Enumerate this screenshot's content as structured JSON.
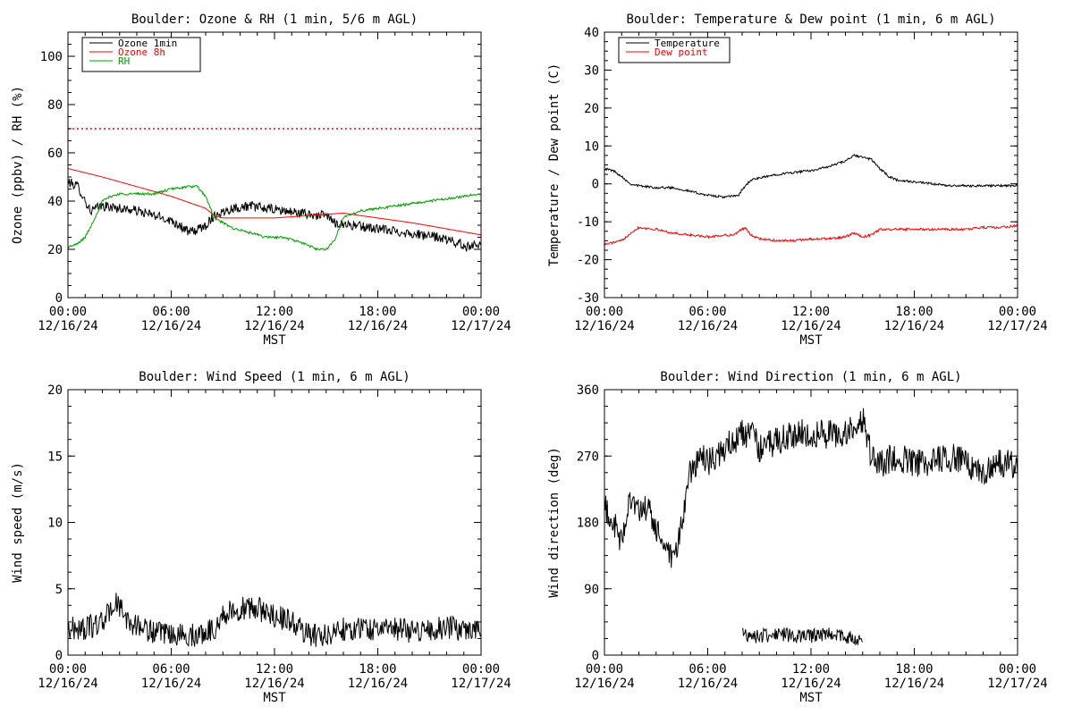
{
  "chart_data": [
    {
      "type": "line",
      "title": "Boulder: Ozone & RH (1 min, 5/6 m AGL)",
      "ylabel": "Ozone (ppbv) / RH (%)",
      "xlabel": "MST",
      "ylim": [
        0,
        110
      ],
      "yticks": [
        0,
        20,
        40,
        60,
        80,
        100
      ],
      "xticks": [
        {
          "time": "00:00",
          "date": "12/16/24"
        },
        {
          "time": "06:00",
          "date": "12/16/24"
        },
        {
          "time": "12:00",
          "date": "12/16/24"
        },
        {
          "time": "18:00",
          "date": "12/16/24"
        },
        {
          "time": "00:00",
          "date": "12/17/24"
        }
      ],
      "xlim_hours": [
        0,
        24
      ],
      "legend": "top-left",
      "reference_lines": [
        {
          "y": 70,
          "color": "#ff0000",
          "style": "dotted"
        }
      ],
      "series": [
        {
          "name": "Ozone 1min",
          "color": "#000000",
          "noise": 2.0,
          "points": [
            [
              0,
              48
            ],
            [
              0.6,
              46
            ],
            [
              1,
              40
            ],
            [
              1.3,
              36
            ],
            [
              2,
              38
            ],
            [
              3,
              37
            ],
            [
              4,
              36
            ],
            [
              5,
              34
            ],
            [
              5.5,
              33
            ],
            [
              6,
              32
            ],
            [
              6.5,
              30
            ],
            [
              7,
              27
            ],
            [
              7.5,
              28
            ],
            [
              8,
              30
            ],
            [
              8.5,
              34
            ],
            [
              9.5,
              37
            ],
            [
              10.5,
              38
            ],
            [
              11.5,
              37
            ],
            [
              12.5,
              36
            ],
            [
              13.5,
              35
            ],
            [
              14.5,
              34
            ],
            [
              15,
              34
            ],
            [
              15.5,
              31
            ],
            [
              16.5,
              30
            ],
            [
              17.5,
              29
            ],
            [
              18.5,
              28
            ],
            [
              19.5,
              27
            ],
            [
              20.5,
              26
            ],
            [
              21.5,
              25
            ],
            [
              22.5,
              23
            ],
            [
              23.2,
              21
            ],
            [
              24,
              23
            ]
          ]
        },
        {
          "name": "Ozone 8h",
          "color": "#ff0000",
          "noise": 0,
          "points": [
            [
              0,
              53.5
            ],
            [
              2,
              50
            ],
            [
              4,
              46
            ],
            [
              6,
              42
            ],
            [
              8,
              37
            ],
            [
              8.5,
              34
            ],
            [
              9,
              33
            ],
            [
              12,
              33
            ],
            [
              14,
              34
            ],
            [
              16,
              35
            ],
            [
              18,
              33
            ],
            [
              20,
              31
            ],
            [
              22,
              28.5
            ],
            [
              24,
              26
            ]
          ]
        },
        {
          "name": "RH",
          "color": "#00a000",
          "noise": 0.5,
          "points": [
            [
              0,
              21
            ],
            [
              0.5,
              22
            ],
            [
              1,
              25
            ],
            [
              1.5,
              32
            ],
            [
              2,
              40
            ],
            [
              2.5,
              42
            ],
            [
              3,
              43
            ],
            [
              4,
              43
            ],
            [
              5,
              43
            ],
            [
              6,
              45
            ],
            [
              7,
              46
            ],
            [
              7.5,
              46
            ],
            [
              8,
              42
            ],
            [
              8.5,
              33
            ],
            [
              9.5,
              29
            ],
            [
              10.5,
              27
            ],
            [
              11.5,
              25
            ],
            [
              12.5,
              25
            ],
            [
              13.5,
              23
            ],
            [
              14.5,
              20
            ],
            [
              15,
              20
            ],
            [
              15.5,
              24
            ],
            [
              16,
              33
            ],
            [
              17,
              36
            ],
            [
              18,
              37
            ],
            [
              19,
              38
            ],
            [
              20,
              39
            ],
            [
              21,
              40
            ],
            [
              22,
              41
            ],
            [
              23,
              42
            ],
            [
              24,
              43
            ]
          ]
        }
      ]
    },
    {
      "type": "line",
      "title": "Boulder: Temperature & Dew point (1 min, 6 m AGL)",
      "ylabel": "Temperature / Dew point (C)",
      "xlabel": "MST",
      "ylim": [
        -30,
        40
      ],
      "yticks": [
        -30,
        -20,
        -10,
        0,
        10,
        20,
        30,
        40
      ],
      "xticks": [
        {
          "time": "00:00",
          "date": "12/16/24"
        },
        {
          "time": "06:00",
          "date": "12/16/24"
        },
        {
          "time": "12:00",
          "date": "12/16/24"
        },
        {
          "time": "18:00",
          "date": "12/16/24"
        },
        {
          "time": "00:00",
          "date": "12/17/24"
        }
      ],
      "xlim_hours": [
        0,
        24
      ],
      "legend": "top-left",
      "series": [
        {
          "name": "Temperature",
          "color": "#000000",
          "noise": 0.3,
          "points": [
            [
              0,
              4
            ],
            [
              0.5,
              3.5
            ],
            [
              1,
              2
            ],
            [
              1.5,
              0
            ],
            [
              2,
              -0.5
            ],
            [
              3,
              -1
            ],
            [
              4,
              -1
            ],
            [
              5,
              -2
            ],
            [
              6,
              -3
            ],
            [
              7,
              -3.5
            ],
            [
              7.8,
              -3
            ],
            [
              8,
              -1.5
            ],
            [
              8.5,
              1
            ],
            [
              9,
              1.5
            ],
            [
              10,
              2.5
            ],
            [
              11,
              3
            ],
            [
              12,
              3.5
            ],
            [
              13,
              4.5
            ],
            [
              14,
              6
            ],
            [
              14.5,
              7.5
            ],
            [
              15,
              7
            ],
            [
              15.5,
              6.5
            ],
            [
              16,
              4
            ],
            [
              16.5,
              2
            ],
            [
              17,
              1
            ],
            [
              18,
              0.5
            ],
            [
              19,
              0
            ],
            [
              20,
              -0.5
            ],
            [
              21,
              -0.5
            ],
            [
              22,
              -0.5
            ],
            [
              23,
              -0.5
            ],
            [
              24,
              -0.5
            ]
          ]
        },
        {
          "name": "Dew point",
          "color": "#ff0000",
          "noise": 0.3,
          "points": [
            [
              0,
              -16
            ],
            [
              0.5,
              -15.5
            ],
            [
              1,
              -15
            ],
            [
              1.5,
              -13
            ],
            [
              2,
              -11.5
            ],
            [
              3,
              -12
            ],
            [
              4,
              -13
            ],
            [
              5,
              -13.5
            ],
            [
              6,
              -14
            ],
            [
              7,
              -13.5
            ],
            [
              7.5,
              -13.5
            ],
            [
              8,
              -12
            ],
            [
              8.2,
              -11.5
            ],
            [
              8.5,
              -13.5
            ],
            [
              9,
              -14.5
            ],
            [
              10,
              -15
            ],
            [
              11,
              -15
            ],
            [
              12,
              -14.5
            ],
            [
              13,
              -14.5
            ],
            [
              14,
              -14
            ],
            [
              14.5,
              -13
            ],
            [
              15,
              -14
            ],
            [
              15.5,
              -13.5
            ],
            [
              16,
              -12
            ],
            [
              17,
              -12
            ],
            [
              18,
              -12
            ],
            [
              19,
              -12
            ],
            [
              20,
              -12
            ],
            [
              21,
              -12
            ],
            [
              22,
              -11.5
            ],
            [
              23,
              -11.5
            ],
            [
              24,
              -11
            ]
          ]
        }
      ]
    },
    {
      "type": "line",
      "title": "Boulder: Wind Speed (1 min, 6 m AGL)",
      "ylabel": "Wind speed (m/s)",
      "xlabel": "MST",
      "ylim": [
        0,
        20
      ],
      "yticks": [
        0,
        5,
        10,
        15,
        20
      ],
      "xticks": [
        {
          "time": "00:00",
          "date": "12/16/24"
        },
        {
          "time": "06:00",
          "date": "12/16/24"
        },
        {
          "time": "12:00",
          "date": "12/16/24"
        },
        {
          "time": "18:00",
          "date": "12/16/24"
        },
        {
          "time": "00:00",
          "date": "12/17/24"
        }
      ],
      "xlim_hours": [
        0,
        24
      ],
      "series": [
        {
          "color": "#000000",
          "noise": 0.9,
          "points": [
            [
              0,
              2
            ],
            [
              1,
              2
            ],
            [
              2,
              2.5
            ],
            [
              2.8,
              4
            ],
            [
              3.5,
              2.5
            ],
            [
              4.5,
              2
            ],
            [
              5.5,
              1.5
            ],
            [
              6.5,
              1.5
            ],
            [
              7.5,
              1.5
            ],
            [
              8.5,
              2
            ],
            [
              9,
              3
            ],
            [
              10,
              3.5
            ],
            [
              11,
              3.5
            ],
            [
              12,
              3
            ],
            [
              13,
              2.5
            ],
            [
              14,
              1.5
            ],
            [
              15,
              1.5
            ],
            [
              16,
              2
            ],
            [
              17,
              2
            ],
            [
              18,
              2
            ],
            [
              19,
              2
            ],
            [
              20,
              1.8
            ],
            [
              21,
              2
            ],
            [
              22,
              2
            ],
            [
              23,
              2
            ],
            [
              24,
              2
            ]
          ]
        }
      ]
    },
    {
      "type": "line",
      "title": "Boulder: Wind Direction (1 min, 6 m AGL)",
      "ylabel": "Wind direction (deg)",
      "xlabel": "MST",
      "ylim": [
        0,
        360
      ],
      "yticks": [
        0,
        90,
        180,
        270,
        360
      ],
      "xticks": [
        {
          "time": "00:00",
          "date": "12/16/24"
        },
        {
          "time": "06:00",
          "date": "12/16/24"
        },
        {
          "time": "12:00",
          "date": "12/16/24"
        },
        {
          "time": "18:00",
          "date": "12/16/24"
        },
        {
          "time": "00:00",
          "date": "12/17/24"
        }
      ],
      "xlim_hours": [
        0,
        24
      ],
      "series": [
        {
          "color": "#000000",
          "noise": 20,
          "points": [
            [
              0,
              200
            ],
            [
              0.5,
              180
            ],
            [
              1,
              150
            ],
            [
              1.5,
              220
            ],
            [
              2,
              190
            ],
            [
              2.5,
              200
            ],
            [
              3,
              170
            ],
            [
              3.5,
              150
            ],
            [
              4,
              120
            ],
            [
              4.5,
              180
            ],
            [
              5,
              250
            ],
            [
              5.5,
              270
            ],
            [
              6,
              260
            ],
            [
              6.5,
              270
            ],
            [
              7,
              280
            ],
            [
              7.5,
              290
            ],
            [
              8,
              300
            ],
            [
              8.5,
              300
            ],
            [
              9,
              280
            ],
            [
              10,
              290
            ],
            [
              11,
              300
            ],
            [
              12,
              300
            ],
            [
              13,
              300
            ],
            [
              14,
              300
            ],
            [
              15,
              320
            ],
            [
              15.5,
              270
            ],
            [
              16,
              260
            ],
            [
              17,
              270
            ],
            [
              18,
              260
            ],
            [
              19,
              260
            ],
            [
              20,
              270
            ],
            [
              21,
              260
            ],
            [
              22,
              250
            ],
            [
              23,
              260
            ],
            [
              24,
              260
            ]
          ]
        },
        {
          "color": "#000000",
          "noise": 10,
          "points": [
            [
              8,
              30
            ],
            [
              9,
              25
            ],
            [
              10,
              30
            ],
            [
              11,
              25
            ],
            [
              12,
              25
            ],
            [
              13,
              30
            ],
            [
              14,
              25
            ],
            [
              15,
              20
            ]
          ]
        }
      ]
    }
  ]
}
